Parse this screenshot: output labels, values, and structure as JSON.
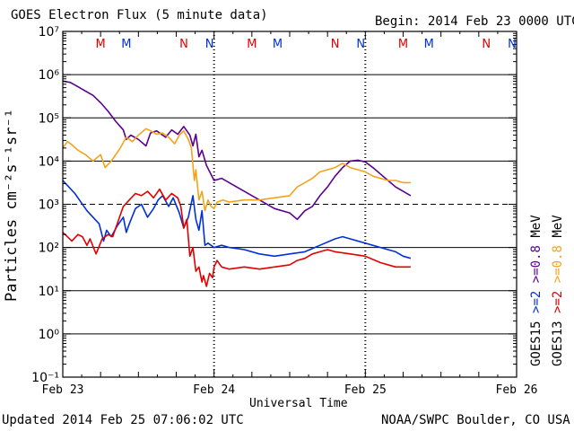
{
  "title": "GOES Electron Flux (5 minute data)",
  "begin": "Begin: 2014 Feb 23 0000 UTC",
  "updated": "Updated 2014 Feb 25 07:06:02 UTC",
  "credit": "NOAA/SWPC Boulder, CO USA",
  "colors": {
    "purple": "#5a0091",
    "orange": "#f2a31d",
    "blue": "#0030d8",
    "red": "#e00000"
  },
  "markers": [
    {
      "label": "M",
      "t": 0.25,
      "color": "#e00000"
    },
    {
      "label": "M",
      "t": 0.42,
      "color": "#0030d8"
    },
    {
      "label": "N",
      "t": 0.8,
      "color": "#e00000"
    },
    {
      "label": "N",
      "t": 0.97,
      "color": "#0030d8"
    },
    {
      "label": "M",
      "t": 1.25,
      "color": "#e00000"
    },
    {
      "label": "M",
      "t": 1.42,
      "color": "#0030d8"
    },
    {
      "label": "N",
      "t": 1.8,
      "color": "#e00000"
    },
    {
      "label": "N",
      "t": 1.97,
      "color": "#0030d8"
    },
    {
      "label": "M",
      "t": 2.25,
      "color": "#e00000"
    },
    {
      "label": "M",
      "t": 2.42,
      "color": "#0030d8"
    },
    {
      "label": "N",
      "t": 2.8,
      "color": "#e00000"
    },
    {
      "label": "N",
      "t": 2.97,
      "color": "#0030d8"
    }
  ],
  "right_legend": [
    {
      "text": "GOES15",
      "color": "#000000"
    },
    {
      "text": ">=2",
      "color": "#0030d8"
    },
    {
      "text": ">=0.8",
      "color": "#5a0091"
    },
    {
      "text": "MeV",
      "color": "#000000"
    },
    {
      "text": "GOES13",
      "color": "#000000"
    },
    {
      "text": ">=2",
      "color": "#e00000"
    },
    {
      "text": ">=0.8",
      "color": "#f2a31d"
    },
    {
      "text": "MeV",
      "color": "#000000"
    }
  ],
  "chart_data": {
    "type": "line",
    "title": "GOES Electron Flux (5 minute data)",
    "xlabel": "Universal Time",
    "ylabel": "Particles cm⁻²s⁻¹sr⁻¹",
    "x_unit": "days since 2014 Feb 23 00:00 UTC",
    "x_ticks": [
      "Feb 23",
      "Feb 24",
      "Feb 25",
      "Feb 26"
    ],
    "ylim_exp": [
      -1,
      7
    ],
    "y_scale": "log",
    "y_ticks": [
      "10⁻¹",
      "10⁰",
      "10¹",
      "10²",
      "10³",
      "10⁴",
      "10⁵",
      "10⁶",
      "10⁷"
    ],
    "dashed_threshold_exp": 3,
    "series": [
      {
        "name": "GOES15 >=0.8 MeV",
        "color": "#5a0091",
        "points": [
          [
            0.0,
            5.85
          ],
          [
            0.05,
            5.82
          ],
          [
            0.1,
            5.72
          ],
          [
            0.15,
            5.62
          ],
          [
            0.2,
            5.52
          ],
          [
            0.25,
            5.35
          ],
          [
            0.3,
            5.15
          ],
          [
            0.35,
            4.92
          ],
          [
            0.4,
            4.72
          ],
          [
            0.42,
            4.5
          ],
          [
            0.45,
            4.6
          ],
          [
            0.5,
            4.5
          ],
          [
            0.55,
            4.35
          ],
          [
            0.58,
            4.65
          ],
          [
            0.62,
            4.7
          ],
          [
            0.68,
            4.55
          ],
          [
            0.72,
            4.72
          ],
          [
            0.76,
            4.62
          ],
          [
            0.8,
            4.8
          ],
          [
            0.84,
            4.6
          ],
          [
            0.86,
            4.35
          ],
          [
            0.88,
            4.62
          ],
          [
            0.9,
            4.1
          ],
          [
            0.92,
            4.25
          ],
          [
            0.95,
            3.9
          ],
          [
            1.0,
            3.55
          ],
          [
            1.05,
            3.6
          ],
          [
            1.1,
            3.5
          ],
          [
            1.2,
            3.3
          ],
          [
            1.3,
            3.1
          ],
          [
            1.4,
            2.9
          ],
          [
            1.5,
            2.8
          ],
          [
            1.55,
            2.65
          ],
          [
            1.6,
            2.85
          ],
          [
            1.65,
            2.95
          ],
          [
            1.7,
            3.2
          ],
          [
            1.75,
            3.4
          ],
          [
            1.8,
            3.65
          ],
          [
            1.85,
            3.85
          ],
          [
            1.9,
            4.0
          ],
          [
            1.95,
            4.02
          ],
          [
            2.0,
            3.98
          ],
          [
            2.05,
            3.85
          ],
          [
            2.1,
            3.7
          ],
          [
            2.15,
            3.55
          ],
          [
            2.2,
            3.4
          ],
          [
            2.25,
            3.3
          ],
          [
            2.3,
            3.2
          ]
        ]
      },
      {
        "name": "GOES13 >=0.8 MeV",
        "color": "#f2a31d",
        "points": [
          [
            0.0,
            4.3
          ],
          [
            0.03,
            4.45
          ],
          [
            0.06,
            4.38
          ],
          [
            0.1,
            4.25
          ],
          [
            0.15,
            4.15
          ],
          [
            0.2,
            4.0
          ],
          [
            0.25,
            4.15
          ],
          [
            0.28,
            3.85
          ],
          [
            0.32,
            4.0
          ],
          [
            0.38,
            4.3
          ],
          [
            0.42,
            4.55
          ],
          [
            0.46,
            4.45
          ],
          [
            0.5,
            4.6
          ],
          [
            0.55,
            4.75
          ],
          [
            0.58,
            4.7
          ],
          [
            0.62,
            4.62
          ],
          [
            0.66,
            4.65
          ],
          [
            0.7,
            4.55
          ],
          [
            0.74,
            4.4
          ],
          [
            0.77,
            4.6
          ],
          [
            0.8,
            4.7
          ],
          [
            0.83,
            4.5
          ],
          [
            0.85,
            4.3
          ],
          [
            0.87,
            3.55
          ],
          [
            0.88,
            3.8
          ],
          [
            0.9,
            3.1
          ],
          [
            0.92,
            3.3
          ],
          [
            0.94,
            2.85
          ],
          [
            0.96,
            3.1
          ],
          [
            0.98,
            2.95
          ],
          [
            1.0,
            2.9
          ],
          [
            1.02,
            3.05
          ],
          [
            1.06,
            3.1
          ],
          [
            1.1,
            3.05
          ],
          [
            1.2,
            3.1
          ],
          [
            1.3,
            3.1
          ],
          [
            1.4,
            3.15
          ],
          [
            1.5,
            3.2
          ],
          [
            1.55,
            3.4
          ],
          [
            1.6,
            3.5
          ],
          [
            1.65,
            3.6
          ],
          [
            1.7,
            3.75
          ],
          [
            1.75,
            3.8
          ],
          [
            1.8,
            3.85
          ],
          [
            1.85,
            3.95
          ],
          [
            1.9,
            3.85
          ],
          [
            1.95,
            3.8
          ],
          [
            2.0,
            3.75
          ],
          [
            2.05,
            3.65
          ],
          [
            2.1,
            3.6
          ],
          [
            2.15,
            3.55
          ],
          [
            2.2,
            3.55
          ],
          [
            2.25,
            3.5
          ],
          [
            2.3,
            3.5
          ]
        ]
      },
      {
        "name": "GOES15 >=2 MeV",
        "color": "#0030d8",
        "points": [
          [
            0.0,
            3.55
          ],
          [
            0.04,
            3.4
          ],
          [
            0.08,
            3.25
          ],
          [
            0.12,
            3.05
          ],
          [
            0.16,
            2.85
          ],
          [
            0.2,
            2.7
          ],
          [
            0.24,
            2.55
          ],
          [
            0.27,
            2.15
          ],
          [
            0.29,
            2.4
          ],
          [
            0.32,
            2.25
          ],
          [
            0.36,
            2.5
          ],
          [
            0.4,
            2.7
          ],
          [
            0.42,
            2.35
          ],
          [
            0.44,
            2.55
          ],
          [
            0.48,
            2.9
          ],
          [
            0.52,
            3.0
          ],
          [
            0.56,
            2.7
          ],
          [
            0.6,
            2.9
          ],
          [
            0.63,
            3.1
          ],
          [
            0.66,
            3.2
          ],
          [
            0.7,
            2.95
          ],
          [
            0.73,
            3.15
          ],
          [
            0.77,
            2.8
          ],
          [
            0.8,
            2.45
          ],
          [
            0.83,
            2.7
          ],
          [
            0.86,
            3.2
          ],
          [
            0.88,
            2.65
          ],
          [
            0.9,
            2.4
          ],
          [
            0.92,
            2.85
          ],
          [
            0.94,
            2.05
          ],
          [
            0.96,
            2.1
          ],
          [
            1.0,
            2.0
          ],
          [
            1.05,
            2.05
          ],
          [
            1.1,
            2.0
          ],
          [
            1.2,
            1.95
          ],
          [
            1.3,
            1.85
          ],
          [
            1.4,
            1.8
          ],
          [
            1.5,
            1.85
          ],
          [
            1.6,
            1.9
          ],
          [
            1.7,
            2.05
          ],
          [
            1.8,
            2.2
          ],
          [
            1.85,
            2.25
          ],
          [
            1.9,
            2.2
          ],
          [
            2.0,
            2.1
          ],
          [
            2.1,
            2.0
          ],
          [
            2.2,
            1.9
          ],
          [
            2.25,
            1.8
          ],
          [
            2.3,
            1.75
          ]
        ]
      },
      {
        "name": "GOES13 >=2 MeV",
        "color": "#e00000",
        "points": [
          [
            0.0,
            2.35
          ],
          [
            0.03,
            2.25
          ],
          [
            0.06,
            2.15
          ],
          [
            0.1,
            2.3
          ],
          [
            0.13,
            2.25
          ],
          [
            0.16,
            2.05
          ],
          [
            0.18,
            2.2
          ],
          [
            0.22,
            1.85
          ],
          [
            0.26,
            2.2
          ],
          [
            0.3,
            2.3
          ],
          [
            0.33,
            2.25
          ],
          [
            0.36,
            2.55
          ],
          [
            0.4,
            2.95
          ],
          [
            0.44,
            3.1
          ],
          [
            0.48,
            3.25
          ],
          [
            0.52,
            3.2
          ],
          [
            0.56,
            3.3
          ],
          [
            0.6,
            3.15
          ],
          [
            0.64,
            3.35
          ],
          [
            0.68,
            3.1
          ],
          [
            0.72,
            3.25
          ],
          [
            0.76,
            3.15
          ],
          [
            0.78,
            2.95
          ],
          [
            0.8,
            2.45
          ],
          [
            0.82,
            2.65
          ],
          [
            0.84,
            1.8
          ],
          [
            0.86,
            2.0
          ],
          [
            0.88,
            1.45
          ],
          [
            0.9,
            1.55
          ],
          [
            0.92,
            1.2
          ],
          [
            0.93,
            1.35
          ],
          [
            0.95,
            1.1
          ],
          [
            0.97,
            1.4
          ],
          [
            0.99,
            1.3
          ],
          [
            1.0,
            1.55
          ],
          [
            1.02,
            1.7
          ],
          [
            1.05,
            1.55
          ],
          [
            1.1,
            1.5
          ],
          [
            1.2,
            1.55
          ],
          [
            1.3,
            1.5
          ],
          [
            1.4,
            1.55
          ],
          [
            1.5,
            1.6
          ],
          [
            1.55,
            1.7
          ],
          [
            1.6,
            1.75
          ],
          [
            1.65,
            1.85
          ],
          [
            1.7,
            1.9
          ],
          [
            1.75,
            1.95
          ],
          [
            1.8,
            1.9
          ],
          [
            1.9,
            1.85
          ],
          [
            2.0,
            1.8
          ],
          [
            2.1,
            1.65
          ],
          [
            2.2,
            1.55
          ],
          [
            2.3,
            1.55
          ]
        ]
      }
    ]
  }
}
